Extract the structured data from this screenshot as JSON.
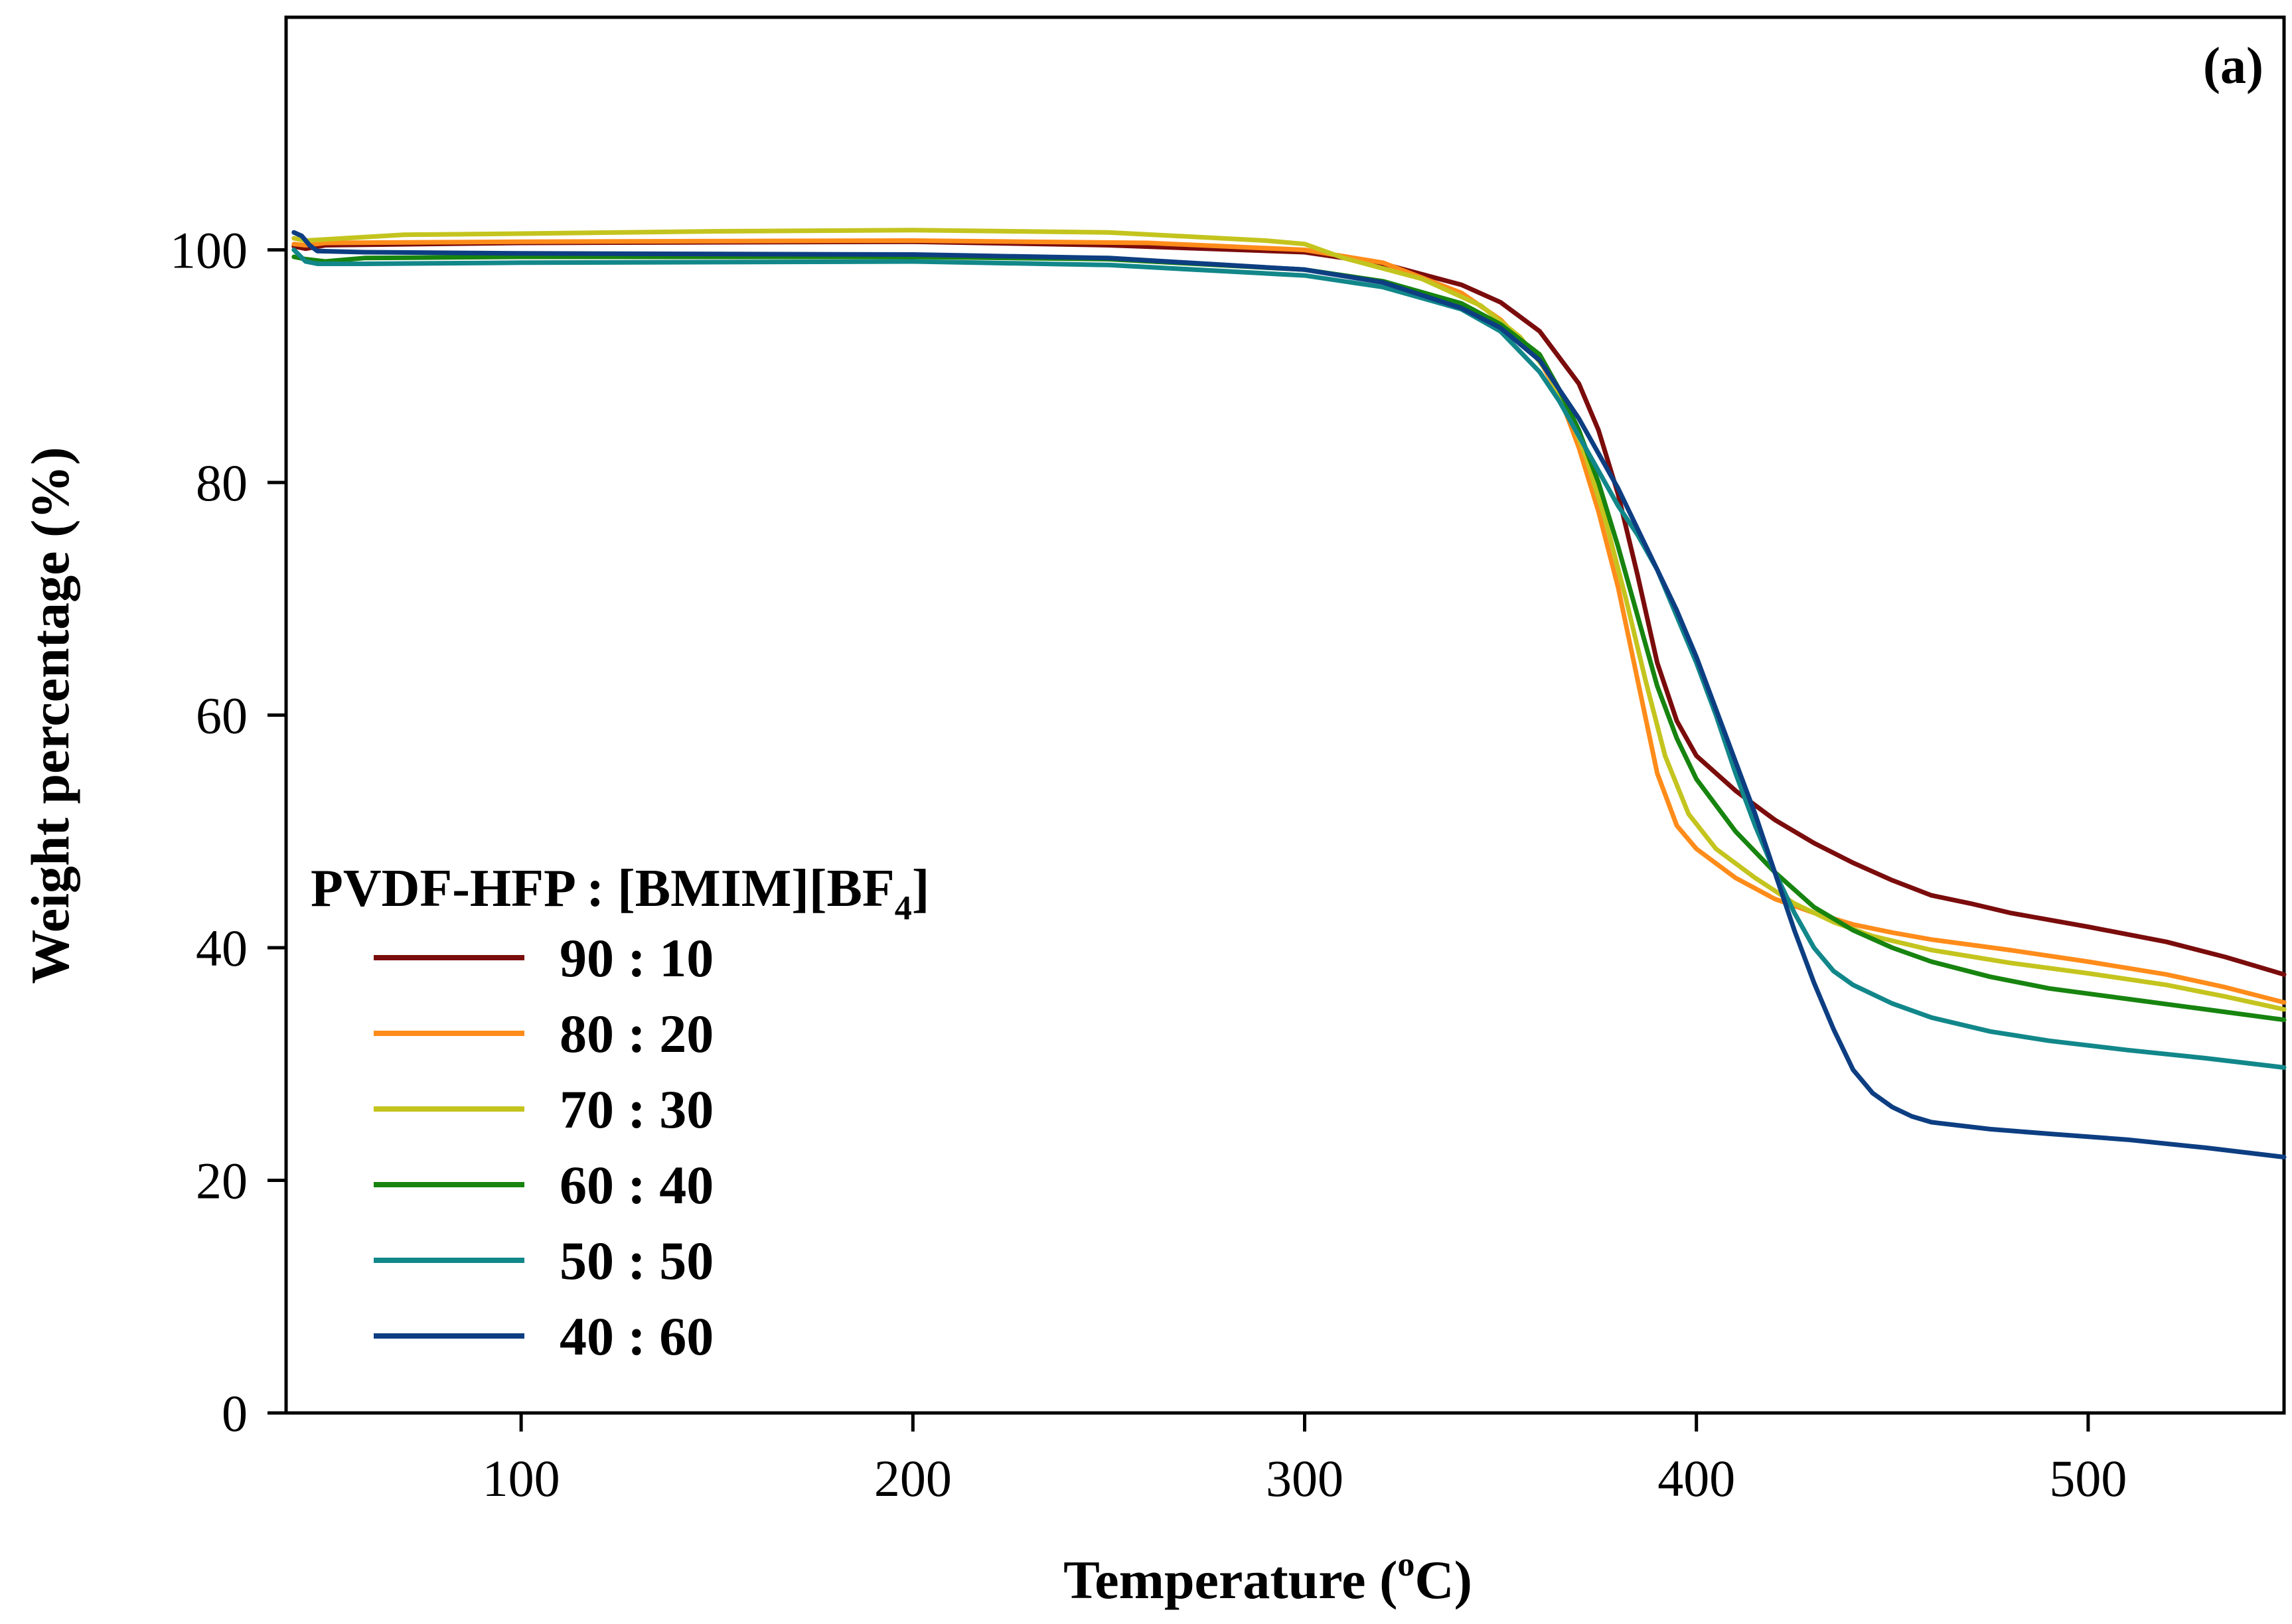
{
  "chart_data": {
    "type": "line",
    "panel_label": "(a)",
    "xlabel": "Temperature (",
    "xlabel_sup": "o",
    "xlabel_suffix": "C)",
    "ylabel": "Weight percentage (%)",
    "xlim": [
      40,
      550
    ],
    "ylim": [
      0,
      120
    ],
    "xticks": [
      100,
      200,
      300,
      400,
      500
    ],
    "yticks": [
      0,
      20,
      40,
      60,
      80,
      100
    ],
    "xtick_labels": [
      "100",
      "200",
      "300",
      "400",
      "500"
    ],
    "ytick_labels": [
      "0",
      "20",
      "40",
      "60",
      "80",
      "100"
    ],
    "grid": false,
    "legend": {
      "position": "left",
      "title": "PVDF-HFP : [BMIM][BF",
      "title_sub": "4",
      "title_suffix": "]"
    },
    "series": [
      {
        "name": "90 : 10",
        "color": "#7b0c0c",
        "points": [
          [
            42,
            100.3
          ],
          [
            45,
            100.1
          ],
          [
            50,
            100.4
          ],
          [
            100,
            100.6
          ],
          [
            200,
            100.7
          ],
          [
            250,
            100.4
          ],
          [
            300,
            99.8
          ],
          [
            320,
            98.8
          ],
          [
            340,
            97.0
          ],
          [
            350,
            95.5
          ],
          [
            360,
            93.0
          ],
          [
            370,
            88.5
          ],
          [
            375,
            84.5
          ],
          [
            380,
            79.0
          ],
          [
            385,
            72.0
          ],
          [
            390,
            64.5
          ],
          [
            395,
            59.5
          ],
          [
            400,
            56.5
          ],
          [
            410,
            53.5
          ],
          [
            420,
            51.0
          ],
          [
            430,
            49.0
          ],
          [
            440,
            47.3
          ],
          [
            450,
            45.8
          ],
          [
            460,
            44.5
          ],
          [
            470,
            43.8
          ],
          [
            480,
            43.0
          ],
          [
            500,
            41.8
          ],
          [
            520,
            40.5
          ],
          [
            535,
            39.2
          ],
          [
            550,
            37.7
          ]
        ]
      },
      {
        "name": "80 : 20",
        "color": "#ff8c1a",
        "points": [
          [
            42,
            100.5
          ],
          [
            45,
            100.4
          ],
          [
            50,
            100.6
          ],
          [
            100,
            100.7
          ],
          [
            200,
            100.8
          ],
          [
            260,
            100.6
          ],
          [
            300,
            100.0
          ],
          [
            320,
            98.9
          ],
          [
            340,
            96.3
          ],
          [
            350,
            94.0
          ],
          [
            360,
            90.5
          ],
          [
            365,
            87.5
          ],
          [
            370,
            83.0
          ],
          [
            375,
            77.5
          ],
          [
            380,
            71.0
          ],
          [
            385,
            63.0
          ],
          [
            390,
            55.0
          ],
          [
            395,
            50.5
          ],
          [
            400,
            48.5
          ],
          [
            410,
            46.0
          ],
          [
            420,
            44.2
          ],
          [
            430,
            43.0
          ],
          [
            440,
            42.0
          ],
          [
            450,
            41.3
          ],
          [
            460,
            40.7
          ],
          [
            480,
            39.8
          ],
          [
            500,
            38.8
          ],
          [
            520,
            37.7
          ],
          [
            535,
            36.6
          ],
          [
            550,
            35.3
          ]
        ]
      },
      {
        "name": "70 : 30",
        "color": "#c4c41f",
        "points": [
          [
            42,
            101.0
          ],
          [
            45,
            100.8
          ],
          [
            60,
            101.1
          ],
          [
            70,
            101.3
          ],
          [
            100,
            101.4
          ],
          [
            150,
            101.6
          ],
          [
            200,
            101.7
          ],
          [
            250,
            101.5
          ],
          [
            290,
            100.8
          ],
          [
            300,
            100.5
          ],
          [
            310,
            99.3
          ],
          [
            330,
            97.5
          ],
          [
            345,
            95.2
          ],
          [
            355,
            92.5
          ],
          [
            362,
            89.5
          ],
          [
            368,
            85.5
          ],
          [
            372,
            82.0
          ],
          [
            377,
            76.5
          ],
          [
            382,
            70.0
          ],
          [
            387,
            63.0
          ],
          [
            392,
            56.5
          ],
          [
            398,
            51.5
          ],
          [
            405,
            48.5
          ],
          [
            415,
            46.0
          ],
          [
            425,
            43.8
          ],
          [
            435,
            42.2
          ],
          [
            445,
            41.0
          ],
          [
            460,
            39.8
          ],
          [
            480,
            38.7
          ],
          [
            500,
            37.8
          ],
          [
            520,
            36.8
          ],
          [
            535,
            35.8
          ],
          [
            550,
            34.7
          ]
        ]
      },
      {
        "name": "60 : 40",
        "color": "#17840f",
        "points": [
          [
            42,
            99.4
          ],
          [
            45,
            99.2
          ],
          [
            50,
            99.0
          ],
          [
            60,
            99.3
          ],
          [
            100,
            99.4
          ],
          [
            200,
            99.4
          ],
          [
            250,
            99.2
          ],
          [
            300,
            98.3
          ],
          [
            320,
            97.3
          ],
          [
            340,
            95.4
          ],
          [
            350,
            93.6
          ],
          [
            360,
            91.0
          ],
          [
            365,
            88.0
          ],
          [
            370,
            84.5
          ],
          [
            375,
            80.0
          ],
          [
            380,
            74.5
          ],
          [
            385,
            68.5
          ],
          [
            390,
            62.5
          ],
          [
            395,
            58.0
          ],
          [
            400,
            54.5
          ],
          [
            410,
            50.0
          ],
          [
            420,
            46.5
          ],
          [
            430,
            43.5
          ],
          [
            440,
            41.5
          ],
          [
            450,
            40.0
          ],
          [
            460,
            38.8
          ],
          [
            475,
            37.5
          ],
          [
            490,
            36.5
          ],
          [
            510,
            35.6
          ],
          [
            530,
            34.7
          ],
          [
            550,
            33.8
          ]
        ]
      },
      {
        "name": "50 : 50",
        "color": "#12878a",
        "points": [
          [
            42,
            100.0
          ],
          [
            45,
            99.0
          ],
          [
            48,
            98.8
          ],
          [
            60,
            98.8
          ],
          [
            100,
            98.9
          ],
          [
            200,
            99.0
          ],
          [
            250,
            98.7
          ],
          [
            300,
            97.8
          ],
          [
            320,
            96.8
          ],
          [
            340,
            94.9
          ],
          [
            350,
            93.0
          ],
          [
            360,
            89.5
          ],
          [
            365,
            87.0
          ],
          [
            370,
            84.0
          ],
          [
            375,
            81.0
          ],
          [
            380,
            78.0
          ],
          [
            385,
            75.5
          ],
          [
            390,
            72.5
          ],
          [
            395,
            68.5
          ],
          [
            400,
            64.5
          ],
          [
            405,
            60.0
          ],
          [
            410,
            55.0
          ],
          [
            415,
            50.5
          ],
          [
            420,
            46.5
          ],
          [
            425,
            43.0
          ],
          [
            430,
            40.0
          ],
          [
            435,
            38.0
          ],
          [
            440,
            36.8
          ],
          [
            450,
            35.2
          ],
          [
            460,
            34.0
          ],
          [
            475,
            32.8
          ],
          [
            490,
            32.0
          ],
          [
            510,
            31.2
          ],
          [
            530,
            30.5
          ],
          [
            550,
            29.7
          ]
        ]
      },
      {
        "name": "40 : 60",
        "color": "#0d3e82",
        "points": [
          [
            42,
            101.5
          ],
          [
            44,
            101.2
          ],
          [
            46,
            100.4
          ],
          [
            48,
            99.9
          ],
          [
            60,
            99.8
          ],
          [
            100,
            99.7
          ],
          [
            200,
            99.6
          ],
          [
            250,
            99.3
          ],
          [
            300,
            98.3
          ],
          [
            320,
            97.2
          ],
          [
            340,
            95.0
          ],
          [
            350,
            93.3
          ],
          [
            360,
            90.5
          ],
          [
            365,
            88.0
          ],
          [
            370,
            85.5
          ],
          [
            375,
            82.5
          ],
          [
            380,
            79.5
          ],
          [
            385,
            76.0
          ],
          [
            390,
            72.5
          ],
          [
            395,
            69.0
          ],
          [
            400,
            65.0
          ],
          [
            405,
            60.5
          ],
          [
            410,
            56.0
          ],
          [
            415,
            51.5
          ],
          [
            420,
            46.5
          ],
          [
            425,
            41.5
          ],
          [
            430,
            37.0
          ],
          [
            435,
            33.0
          ],
          [
            440,
            29.5
          ],
          [
            445,
            27.5
          ],
          [
            450,
            26.3
          ],
          [
            455,
            25.5
          ],
          [
            460,
            25.0
          ],
          [
            475,
            24.4
          ],
          [
            490,
            24.0
          ],
          [
            510,
            23.5
          ],
          [
            530,
            22.8
          ],
          [
            550,
            22.0
          ]
        ]
      }
    ]
  }
}
